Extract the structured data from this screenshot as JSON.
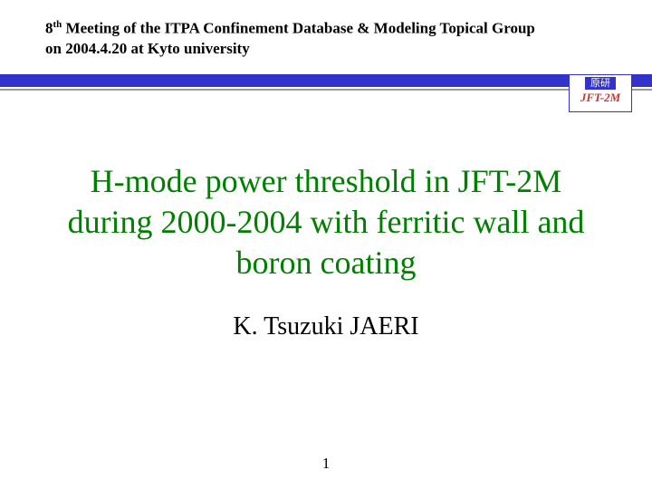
{
  "header": {
    "line1_before_sup": "8",
    "sup": "th",
    "line1_after_sup": " Meeting of the ITPA Confinement Database & Modeling Topical Group",
    "line2": " on 2004.4.20 at Kyto university"
  },
  "divider": {
    "blue_color": "#3333cc",
    "gray_color": "#999999"
  },
  "logo": {
    "kanji": "原研",
    "label": "JFT-2M",
    "border_color": "#3333cc",
    "label_color": "#cc3333"
  },
  "title": {
    "text": "H-mode power threshold in JFT-2M during 2000-2004 with ferritic wall and boron coating",
    "color": "#008000"
  },
  "author": {
    "text": "K. Tsuzuki   JAERI"
  },
  "page_number": "1"
}
